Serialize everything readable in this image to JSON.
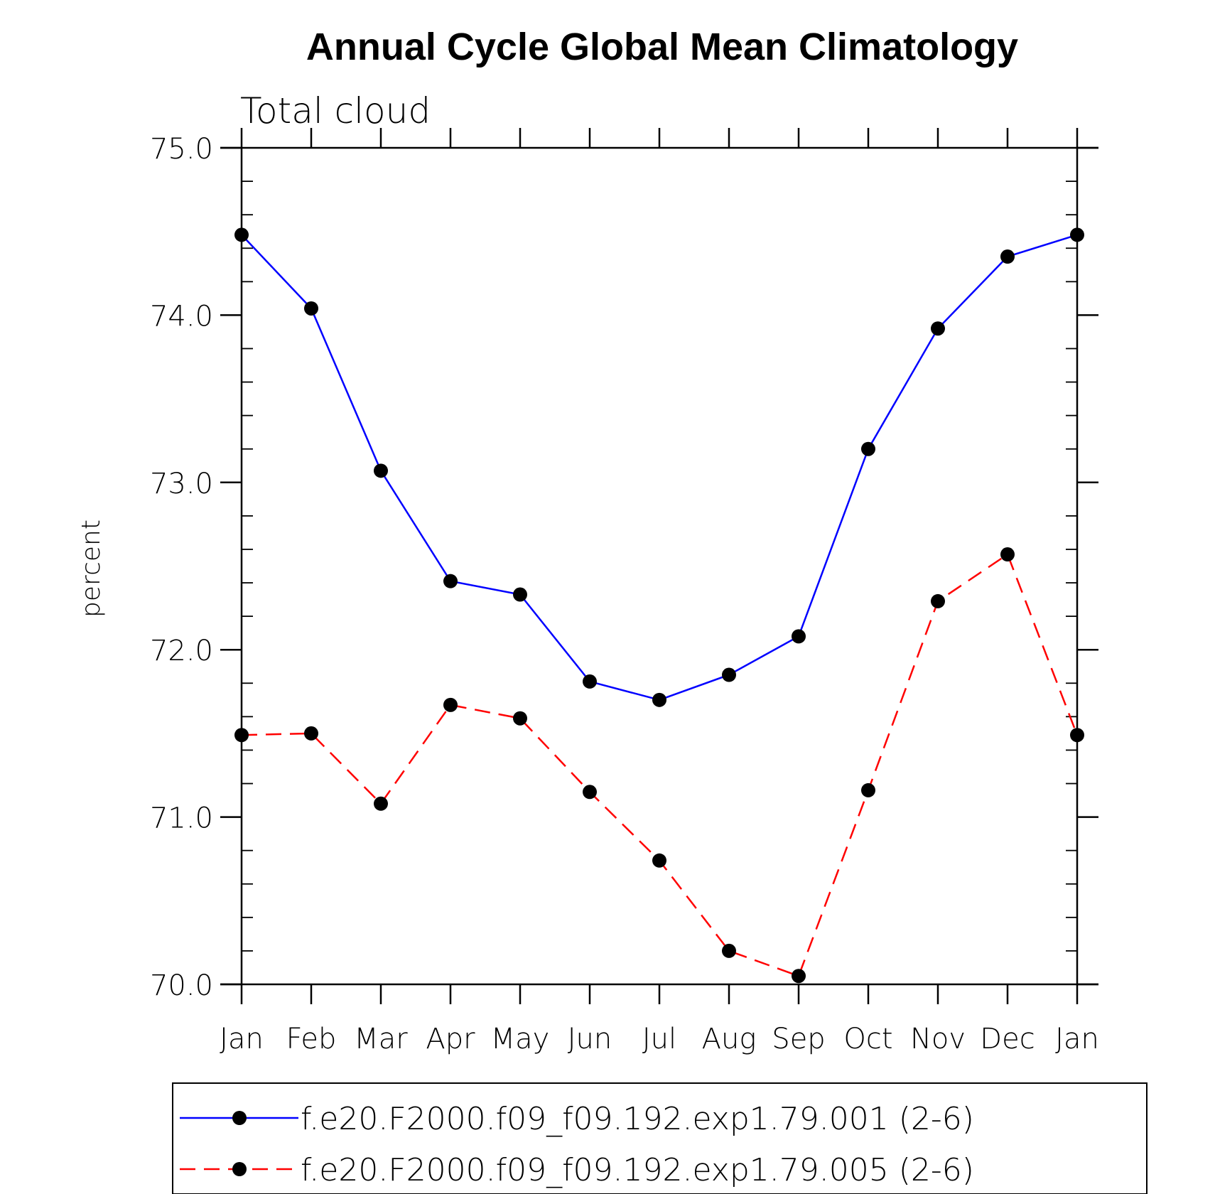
{
  "chart_data": {
    "type": "line",
    "title": "Annual Cycle Global Mean Climatology",
    "subtitle": "Total cloud",
    "xlabel": "",
    "ylabel": "percent",
    "categories": [
      "Jan",
      "Feb",
      "Mar",
      "Apr",
      "May",
      "Jun",
      "Jul",
      "Aug",
      "Sep",
      "Oct",
      "Nov",
      "Dec",
      "Jan"
    ],
    "ylim": [
      70.0,
      75.0
    ],
    "yticks": [
      "70.0",
      "71.0",
      "72.0",
      "73.0",
      "74.0",
      "75.0"
    ],
    "series": [
      {
        "name": "f.e20.F2000.f09_f09.192.exp1.79.001 (2-6)",
        "color": "#0000ff",
        "dash": "solid",
        "values": [
          74.48,
          74.04,
          73.07,
          72.41,
          72.33,
          71.81,
          71.7,
          71.85,
          72.08,
          73.2,
          73.92,
          74.35,
          74.48
        ]
      },
      {
        "name": "f.e20.F2000.f09_f09.192.exp1.79.005 (2-6)",
        "color": "#ff0000",
        "dash": "dashed",
        "values": [
          71.49,
          71.5,
          71.08,
          71.67,
          71.59,
          71.15,
          70.74,
          70.2,
          70.05,
          71.16,
          72.29,
          72.57,
          71.49
        ]
      }
    ],
    "legend_position": "bottom",
    "grid": false,
    "marker_color": "#000000"
  }
}
